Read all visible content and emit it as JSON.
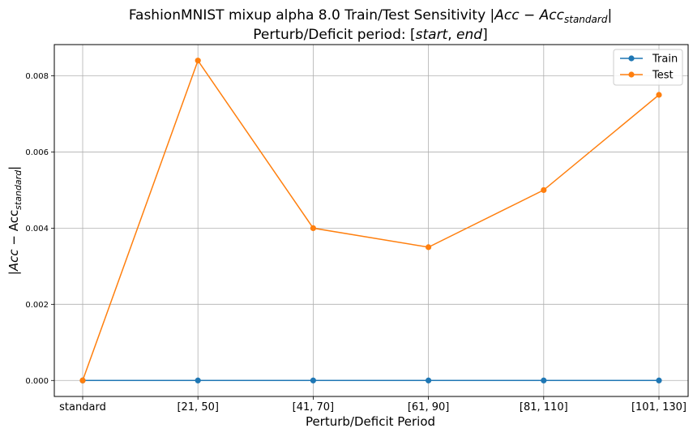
{
  "chart_data": {
    "type": "line",
    "title_prefix": "FashionMNIST mixup alpha 8.0 Train/Test Sensitivity |",
    "title_acc": "Acc",
    "title_minus": " − ",
    "title_acc2": "Acc",
    "title_sub": "standard",
    "title_end": "|",
    "subtitle_prefix": "Perturb/Deficit period: [",
    "subtitle_start": "start",
    "subtitle_sep": ", ",
    "subtitle_end": "end",
    "subtitle_close": "]",
    "xlabel": "Perturb/Deficit Period",
    "ylabel_open": "|",
    "ylabel_acc": "Acc",
    "ylabel_minus": " − Acc",
    "ylabel_sub": "standard",
    "ylabel_close": "|",
    "categories": [
      "standard",
      "[21, 50]",
      "[41, 70]",
      "[61, 90]",
      "[81, 110]",
      "[101, 130]"
    ],
    "series": [
      {
        "name": "Train",
        "color": "#1f77b4",
        "values": [
          0.0,
          0.0,
          0.0,
          0.0,
          0.0,
          0.0
        ]
      },
      {
        "name": "Test",
        "color": "#ff7f0e",
        "values": [
          0.0,
          0.0084,
          0.004,
          0.0035,
          0.005,
          0.0075
        ]
      }
    ],
    "yticks": [
      "0.000",
      "0.002",
      "0.004",
      "0.006",
      "0.008"
    ],
    "ylim": [
      -0.00042,
      0.00882
    ],
    "grid": true,
    "legend_position": "top-right"
  }
}
